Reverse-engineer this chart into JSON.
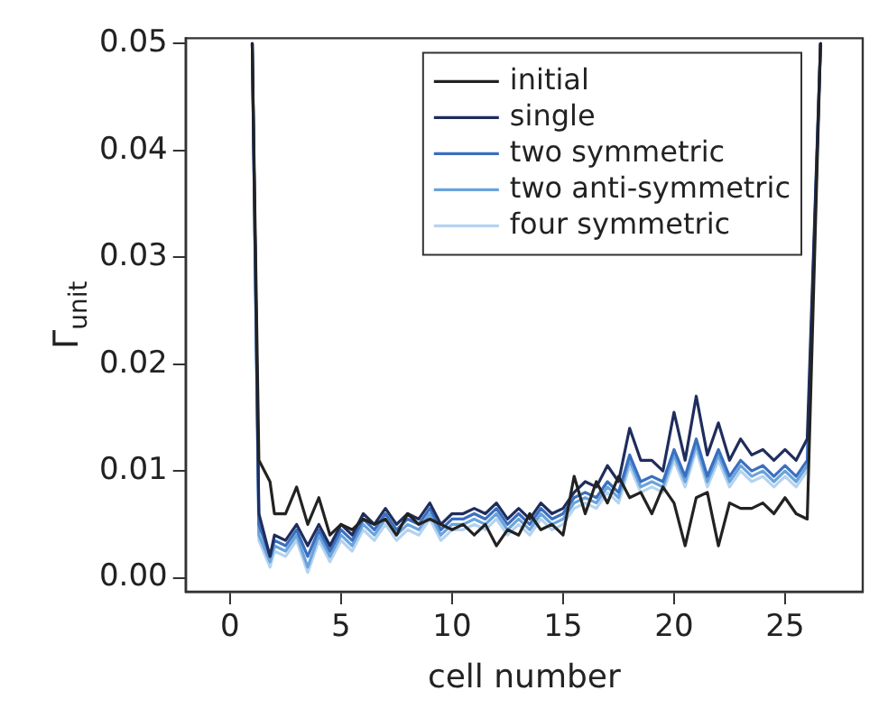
{
  "chart_data": {
    "type": "line",
    "xlabel": "cell number",
    "ylabel": "Γ$_{unit}$",
    "xlim": [
      -2,
      28.5
    ],
    "xticks": [
      0,
      5,
      10,
      15,
      20,
      25
    ],
    "ylim": [
      -0.0013,
      0.0505
    ],
    "yticks": [
      {
        "value": 0,
        "label": "0.00"
      },
      0.01,
      0.02,
      0.03,
      0.04,
      0.05
    ],
    "grid": false,
    "legend": "top right",
    "marker": "none",
    "line_style": "solid",
    "x": [
      1,
      1.3,
      1.8,
      2,
      2.5,
      3,
      3.5,
      4,
      4.5,
      5,
      5.5,
      6,
      6.5,
      7,
      7.5,
      8,
      8.5,
      9,
      9.5,
      10,
      10.5,
      11,
      11.5,
      12,
      12.5,
      13,
      13.5,
      14,
      14.5,
      15,
      15.5,
      16,
      16.5,
      17,
      17.5,
      18,
      18.5,
      19,
      19.5,
      20,
      20.5,
      21,
      21.5,
      22,
      22.5,
      23,
      23.5,
      24,
      24.5,
      25,
      25.5,
      26,
      26.6
    ],
    "series": [
      {
        "name": "initial",
        "color": "#222222",
        "values": [
          0.05,
          0.011,
          0.009,
          0.006,
          0.006,
          0.0085,
          0.005,
          0.0075,
          0.004,
          0.005,
          0.0045,
          0.0055,
          0.005,
          0.0055,
          0.004,
          0.006,
          0.005,
          0.0055,
          0.005,
          0.0045,
          0.005,
          0.004,
          0.005,
          0.003,
          0.0045,
          0.004,
          0.006,
          0.0045,
          0.005,
          0.004,
          0.0095,
          0.006,
          0.009,
          0.007,
          0.0095,
          0.0075,
          0.008,
          0.006,
          0.0085,
          0.007,
          0.003,
          0.0075,
          0.008,
          0.003,
          0.007,
          0.0065,
          0.0065,
          0.007,
          0.006,
          0.0075,
          0.006,
          0.0055,
          0.05
        ]
      },
      {
        "name": "single",
        "color": "#1f2d5c",
        "values": [
          0.05,
          0.006,
          0.002,
          0.004,
          0.0035,
          0.005,
          0.003,
          0.005,
          0.003,
          0.005,
          0.004,
          0.006,
          0.005,
          0.0065,
          0.005,
          0.006,
          0.0055,
          0.007,
          0.005,
          0.006,
          0.006,
          0.0065,
          0.006,
          0.007,
          0.0055,
          0.0065,
          0.0055,
          0.007,
          0.006,
          0.0065,
          0.008,
          0.009,
          0.0085,
          0.0105,
          0.009,
          0.014,
          0.011,
          0.011,
          0.01,
          0.0155,
          0.011,
          0.017,
          0.0115,
          0.0145,
          0.011,
          0.013,
          0.0115,
          0.012,
          0.011,
          0.012,
          0.011,
          0.013,
          0.05
        ]
      },
      {
        "name": "two symmetric",
        "color": "#3a6fc0",
        "values": [
          0.05,
          0.005,
          0.002,
          0.0035,
          0.003,
          0.0045,
          0.002,
          0.0045,
          0.0025,
          0.0045,
          0.0035,
          0.0055,
          0.0045,
          0.006,
          0.0045,
          0.0055,
          0.005,
          0.0065,
          0.0045,
          0.0055,
          0.0055,
          0.006,
          0.0055,
          0.0065,
          0.005,
          0.006,
          0.005,
          0.0065,
          0.0055,
          0.006,
          0.0075,
          0.008,
          0.0075,
          0.009,
          0.008,
          0.0115,
          0.009,
          0.0095,
          0.009,
          0.012,
          0.0095,
          0.013,
          0.0095,
          0.012,
          0.0095,
          0.011,
          0.01,
          0.0105,
          0.0095,
          0.0105,
          0.0095,
          0.011,
          0.05
        ]
      },
      {
        "name": "two anti-symmetric",
        "color": "#6aa3dc",
        "values": [
          0.05,
          0.004,
          0.0015,
          0.003,
          0.0025,
          0.004,
          0.001,
          0.004,
          0.002,
          0.004,
          0.003,
          0.005,
          0.004,
          0.0055,
          0.004,
          0.005,
          0.0045,
          0.006,
          0.004,
          0.005,
          0.005,
          0.0055,
          0.005,
          0.006,
          0.0045,
          0.0055,
          0.0045,
          0.006,
          0.005,
          0.0055,
          0.007,
          0.0075,
          0.007,
          0.0085,
          0.0075,
          0.011,
          0.0085,
          0.009,
          0.0085,
          0.0115,
          0.009,
          0.0125,
          0.009,
          0.0115,
          0.009,
          0.0105,
          0.0095,
          0.01,
          0.009,
          0.01,
          0.009,
          0.0105,
          0.05
        ]
      },
      {
        "name": "four symmetric",
        "color": "#b5d3ee",
        "values": [
          0.05,
          0.0035,
          0.001,
          0.0025,
          0.002,
          0.0035,
          0.0005,
          0.0035,
          0.0015,
          0.0035,
          0.0025,
          0.0045,
          0.0035,
          0.005,
          0.0035,
          0.0045,
          0.004,
          0.0055,
          0.0035,
          0.0045,
          0.0045,
          0.005,
          0.0045,
          0.0055,
          0.004,
          0.005,
          0.004,
          0.0055,
          0.0045,
          0.005,
          0.0065,
          0.007,
          0.0065,
          0.008,
          0.007,
          0.0105,
          0.008,
          0.0085,
          0.008,
          0.011,
          0.0085,
          0.012,
          0.0085,
          0.011,
          0.0085,
          0.01,
          0.009,
          0.0095,
          0.0085,
          0.0095,
          0.0085,
          0.01,
          0.05
        ]
      }
    ]
  }
}
